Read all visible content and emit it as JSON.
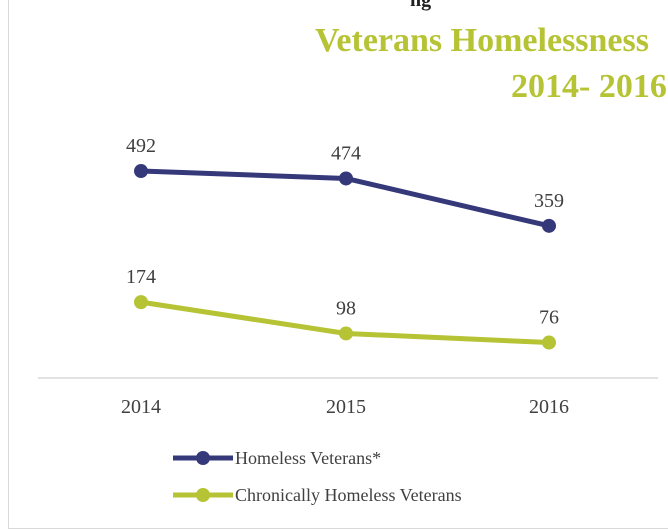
{
  "header": {
    "clipped_title": "ng",
    "title_line1": "Veterans Homelessness",
    "title_line2": "2014- 2016"
  },
  "chart_data": {
    "type": "line",
    "title": "Veterans Homelessness 2014- 2016",
    "categories": [
      "2014",
      "2015",
      "2016"
    ],
    "series": [
      {
        "name": "Homeless Veterans*",
        "values": [
          492,
          474,
          359
        ],
        "color": "#35397a"
      },
      {
        "name": "Chronically Homeless Veterans",
        "values": [
          174,
          98,
          76
        ],
        "color": "#b5c334"
      }
    ],
    "ylim": [
      -10,
      640
    ],
    "grid": false,
    "legend": "bottom"
  }
}
